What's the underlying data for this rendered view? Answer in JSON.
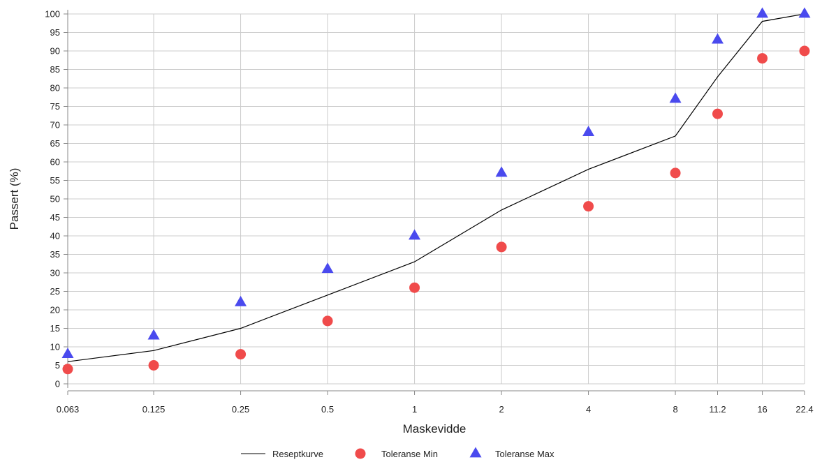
{
  "chart_data": {
    "type": "line",
    "xlabel": "Maskevidde",
    "ylabel": "Passert (%)",
    "x_scale": "log",
    "x_ticks": [
      "0.063",
      "0.125",
      "0.25",
      "0.5",
      "1",
      "2",
      "4",
      "8",
      "11.2",
      "16",
      "22.4"
    ],
    "x": [
      0.063,
      0.125,
      0.25,
      0.5,
      1,
      2,
      4,
      8,
      11.2,
      16,
      22.4
    ],
    "ylim": [
      0,
      100
    ],
    "y_ticks": [
      0,
      5,
      10,
      15,
      20,
      25,
      30,
      35,
      40,
      45,
      50,
      55,
      60,
      65,
      70,
      75,
      80,
      85,
      90,
      95,
      100
    ],
    "grid": true,
    "legend_position": "bottom",
    "series": [
      {
        "name": "Reseptkurve",
        "style": "line",
        "color": "#000000",
        "values": [
          6,
          9,
          15,
          24,
          33,
          47,
          58,
          67,
          83,
          98,
          100
        ]
      },
      {
        "name": "Toleranse Min",
        "style": "circle",
        "color": "#f04b4b",
        "values": [
          4,
          5,
          8,
          17,
          26,
          37,
          48,
          57,
          73,
          88,
          90
        ]
      },
      {
        "name": "Toleranse Max",
        "style": "triangle",
        "color": "#4a4aee",
        "values": [
          8,
          13,
          22,
          31,
          40,
          57,
          68,
          77,
          93,
          100,
          100
        ]
      }
    ]
  }
}
